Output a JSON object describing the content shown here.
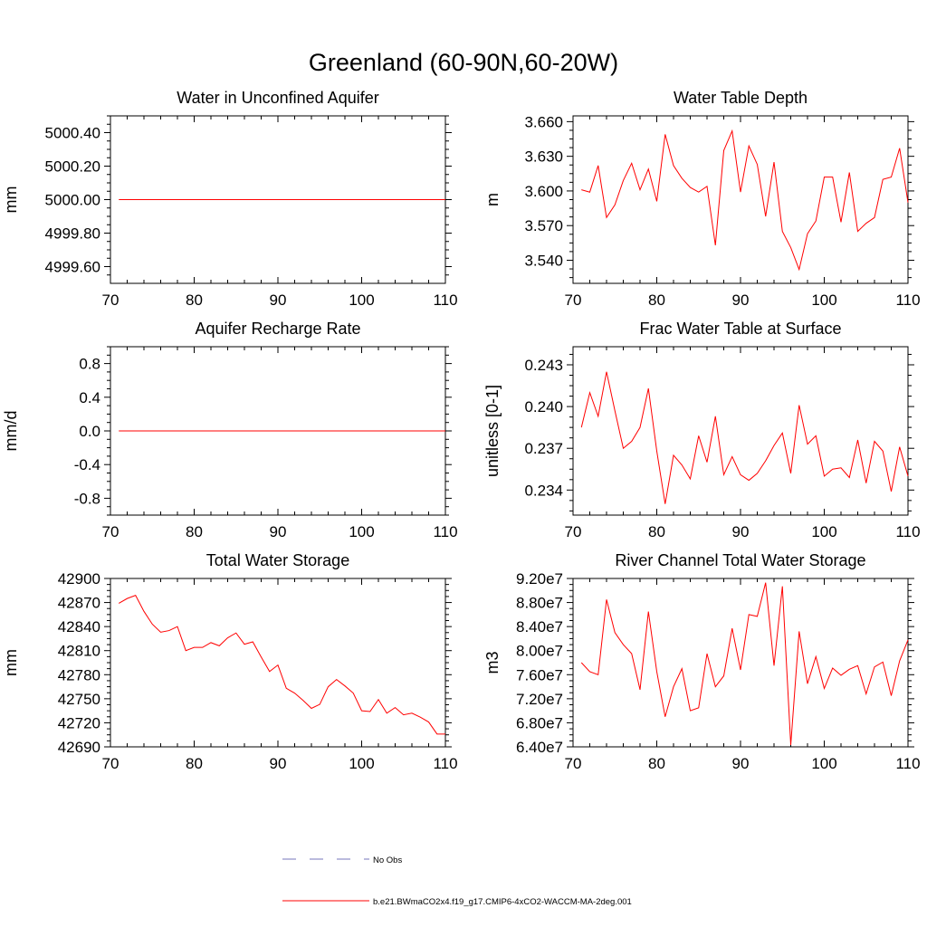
{
  "page": {
    "title": "Greenland (60-90N,60-20W)"
  },
  "chart_data": [
    {
      "type": "line",
      "title": "Water in Unconfined Aquifer",
      "ylabel": "mm",
      "xlim": [
        70,
        110
      ],
      "ylim": [
        4999.5,
        5000.5
      ],
      "xticks": [
        70,
        80,
        90,
        100,
        110
      ],
      "xtick_labels": [
        "70",
        "80",
        "90",
        "100",
        "110"
      ],
      "yticks": [
        4999.6,
        4999.8,
        5000.0,
        5000.2,
        5000.4
      ],
      "ytick_labels": [
        "4999.60",
        "4999.80",
        "5000.00",
        "5000.20",
        "5000.40"
      ],
      "ytick_decimals": 2,
      "x": [
        71,
        110
      ],
      "y": [
        5000.0,
        5000.0
      ]
    },
    {
      "type": "line",
      "title": "Water Table Depth",
      "ylabel": "m",
      "xlim": [
        70,
        110
      ],
      "ylim": [
        3.52,
        3.665
      ],
      "xticks": [
        70,
        80,
        90,
        100,
        110
      ],
      "xtick_labels": [
        "70",
        "80",
        "90",
        "100",
        "110"
      ],
      "yticks": [
        3.54,
        3.57,
        3.6,
        3.63,
        3.66
      ],
      "ytick_labels": [
        "3.540",
        "3.570",
        "3.600",
        "3.630",
        "3.660"
      ],
      "ytick_decimals": 3,
      "x": [
        71,
        72,
        73,
        74,
        75,
        76,
        77,
        78,
        79,
        80,
        81,
        82,
        83,
        84,
        85,
        86,
        87,
        88,
        89,
        90,
        91,
        92,
        93,
        94,
        95,
        96,
        97,
        98,
        99,
        100,
        101,
        102,
        103,
        104,
        105,
        106,
        107,
        108,
        109,
        110
      ],
      "y": [
        3.601,
        3.599,
        3.622,
        3.577,
        3.588,
        3.609,
        3.624,
        3.601,
        3.619,
        3.591,
        3.649,
        3.622,
        3.611,
        3.603,
        3.599,
        3.604,
        3.553,
        3.635,
        3.652,
        3.599,
        3.639,
        3.623,
        3.578,
        3.625,
        3.565,
        3.551,
        3.532,
        3.563,
        3.574,
        3.612,
        3.612,
        3.573,
        3.616,
        3.565,
        3.572,
        3.577,
        3.61,
        3.612,
        3.637,
        3.59
      ]
    },
    {
      "type": "line",
      "title": "Aquifer Recharge Rate",
      "ylabel": "mm/d",
      "xlim": [
        70,
        110
      ],
      "ylim": [
        -1.0,
        1.0
      ],
      "xticks": [
        70,
        80,
        90,
        100,
        110
      ],
      "xtick_labels": [
        "70",
        "80",
        "90",
        "100",
        "110"
      ],
      "yticks": [
        -0.8,
        -0.4,
        0.0,
        0.4,
        0.8
      ],
      "ytick_labels": [
        "-0.8",
        "-0.4",
        "0.0",
        "0.4",
        "0.8"
      ],
      "ytick_decimals": 1,
      "x": [
        71,
        110
      ],
      "y": [
        0.0,
        0.0
      ]
    },
    {
      "type": "line",
      "title": "Frac Water Table at Surface",
      "ylabel": "unitless [0-1]",
      "xlim": [
        70,
        110
      ],
      "ylim": [
        0.2322,
        0.2443
      ],
      "xticks": [
        70,
        80,
        90,
        100,
        110
      ],
      "xtick_labels": [
        "70",
        "80",
        "90",
        "100",
        "110"
      ],
      "yticks": [
        0.234,
        0.237,
        0.24,
        0.243
      ],
      "ytick_labels": [
        "0.234",
        "0.237",
        "0.240",
        "0.243"
      ],
      "ytick_decimals": 3,
      "x": [
        71,
        72,
        73,
        74,
        75,
        76,
        77,
        78,
        79,
        80,
        81,
        82,
        83,
        84,
        85,
        86,
        87,
        88,
        89,
        90,
        91,
        92,
        93,
        94,
        95,
        96,
        97,
        98,
        99,
        100,
        101,
        102,
        103,
        104,
        105,
        106,
        107,
        108,
        109,
        110
      ],
      "y": [
        0.2385,
        0.241,
        0.2393,
        0.2425,
        0.2397,
        0.237,
        0.2375,
        0.2385,
        0.2413,
        0.2368,
        0.233,
        0.2365,
        0.2358,
        0.2348,
        0.2379,
        0.236,
        0.2393,
        0.2351,
        0.2364,
        0.2351,
        0.2347,
        0.2352,
        0.2361,
        0.2372,
        0.2381,
        0.2352,
        0.2401,
        0.2373,
        0.2379,
        0.235,
        0.2355,
        0.2356,
        0.2349,
        0.2376,
        0.2345,
        0.2375,
        0.2368,
        0.2339,
        0.2371,
        0.235
      ]
    },
    {
      "type": "line",
      "title": "Total Water Storage",
      "ylabel": "mm",
      "xlim": [
        70,
        110
      ],
      "ylim": [
        42690,
        42900
      ],
      "xticks": [
        70,
        80,
        90,
        100,
        110
      ],
      "xtick_labels": [
        "70",
        "80",
        "90",
        "100",
        "110"
      ],
      "yticks": [
        42690,
        42720,
        42750,
        42780,
        42810,
        42840,
        42870,
        42900
      ],
      "ytick_labels": [
        "42690",
        "42720",
        "42750",
        "42780",
        "42810",
        "42840",
        "42870",
        "42900"
      ],
      "ytick_decimals": 0,
      "x": [
        71,
        72,
        73,
        74,
        75,
        76,
        77,
        78,
        79,
        80,
        81,
        82,
        83,
        84,
        85,
        86,
        87,
        88,
        89,
        90,
        91,
        92,
        93,
        94,
        95,
        96,
        97,
        98,
        99,
        100,
        101,
        102,
        103,
        104,
        105,
        106,
        107,
        108,
        109,
        110
      ],
      "y": [
        42869,
        42875,
        42879,
        42859,
        42843,
        42833,
        42835,
        42840,
        42810,
        42814,
        42814,
        42820,
        42816,
        42826,
        42832,
        42818,
        42821,
        42802,
        42784,
        42792,
        42763,
        42757,
        42748,
        42738,
        42743,
        42765,
        42774,
        42766,
        42757,
        42735,
        42734,
        42749,
        42732,
        42739,
        42730,
        42732,
        42727,
        42721,
        42706,
        42706
      ]
    },
    {
      "type": "line",
      "title": "River Channel Total Water Storage",
      "ylabel": "m3",
      "xlim": [
        70,
        110
      ],
      "ylim": [
        64000000,
        92000000
      ],
      "xticks": [
        70,
        80,
        90,
        100,
        110
      ],
      "xtick_labels": [
        "70",
        "80",
        "90",
        "100",
        "110"
      ],
      "yticks": [
        64000000,
        68000000,
        72000000,
        76000000,
        80000000,
        84000000,
        88000000,
        92000000
      ],
      "ytick_labels": [
        "6.40e7",
        "6.80e7",
        "7.20e7",
        "7.60e7",
        "8.00e7",
        "8.40e7",
        "8.80e7",
        "9.20e7"
      ],
      "ytick_decimals": 0,
      "x": [
        71,
        72,
        73,
        74,
        75,
        76,
        77,
        78,
        79,
        80,
        81,
        82,
        83,
        84,
        85,
        86,
        87,
        88,
        89,
        90,
        91,
        92,
        93,
        94,
        95,
        96,
        97,
        98,
        99,
        100,
        101,
        102,
        103,
        104,
        105,
        106,
        107,
        108,
        109,
        110
      ],
      "y": [
        78000000,
        76500000,
        76000000,
        88500000,
        83000000,
        81000000,
        79500000,
        73500000,
        86500000,
        76500000,
        69000000,
        74000000,
        77000000,
        70000000,
        70500000,
        79500000,
        74000000,
        75800000,
        83700000,
        76800000,
        86000000,
        85700000,
        91300000,
        77500000,
        90700000,
        64300000,
        83200000,
        74500000,
        79000000,
        73700000,
        77100000,
        75900000,
        76900000,
        77500000,
        72800000,
        77300000,
        78100000,
        72500000,
        78300000,
        81800000
      ]
    }
  ],
  "legend": {
    "placement": "bottom-center",
    "items": [
      {
        "label": "No Obs",
        "color": "#7777bb",
        "style": "dashed"
      },
      {
        "label": "b.e21.BWmaCO2x4.f19_g17.CMIP6-4xCO2-WACCM-MA-2deg.001",
        "color": "#ff0000",
        "style": "solid"
      }
    ]
  },
  "colors": {
    "series": "#ff0000",
    "axis": "#000000"
  }
}
